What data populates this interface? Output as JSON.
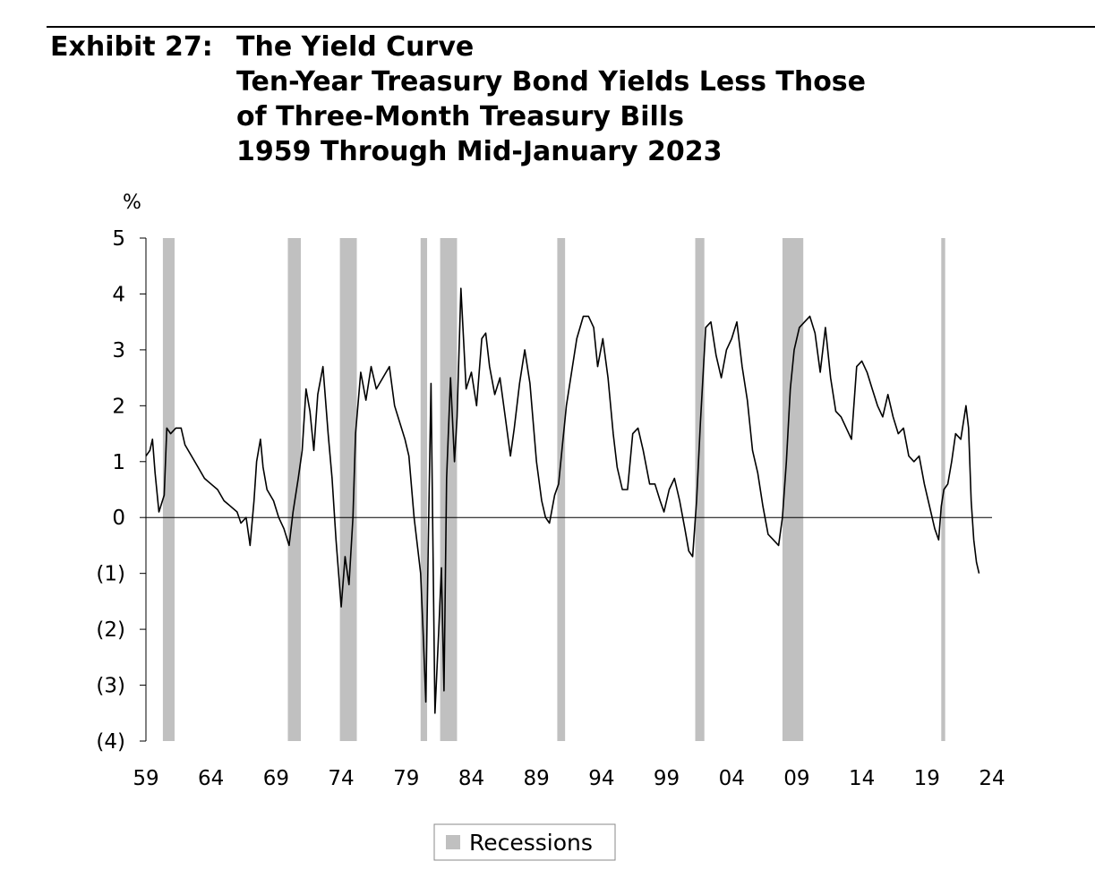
{
  "exhibit_label": "Exhibit 27:",
  "title_lines": [
    "The Yield Curve",
    "Ten-Year Treasury Bond Yields Less Those",
    "of Three-Month Treasury Bills",
    "1959 Through Mid-January 2023"
  ],
  "colors": {
    "line": "#000000",
    "recession": "#c0c0c0",
    "axis": "#000000"
  },
  "chart_data": {
    "type": "line",
    "title": "The Yield Curve",
    "ylabel": "%",
    "xlabel": "",
    "ylim": [
      -4,
      5
    ],
    "xlim": [
      1959,
      2024
    ],
    "y_ticks": [
      {
        "value": 5,
        "label": "5"
      },
      {
        "value": 4,
        "label": "4"
      },
      {
        "value": 3,
        "label": "3"
      },
      {
        "value": 2,
        "label": "2"
      },
      {
        "value": 1,
        "label": "1"
      },
      {
        "value": 0,
        "label": "0"
      },
      {
        "value": -1,
        "label": "(1)"
      },
      {
        "value": -2,
        "label": "(2)"
      },
      {
        "value": -3,
        "label": "(3)"
      },
      {
        "value": -4,
        "label": "(4)"
      }
    ],
    "x_ticks": [
      {
        "value": 1959,
        "label": "59"
      },
      {
        "value": 1964,
        "label": "64"
      },
      {
        "value": 1969,
        "label": "69"
      },
      {
        "value": 1974,
        "label": "74"
      },
      {
        "value": 1979,
        "label": "79"
      },
      {
        "value": 1984,
        "label": "84"
      },
      {
        "value": 1989,
        "label": "89"
      },
      {
        "value": 1994,
        "label": "94"
      },
      {
        "value": 1999,
        "label": "99"
      },
      {
        "value": 2004,
        "label": "04"
      },
      {
        "value": 2009,
        "label": "09"
      },
      {
        "value": 2014,
        "label": "14"
      },
      {
        "value": 2019,
        "label": "19"
      },
      {
        "value": 2024,
        "label": "24"
      }
    ],
    "grid": false,
    "legend_placement": "bottom-center",
    "legend": [
      {
        "label": "Recessions"
      }
    ],
    "recessions": [
      [
        1960.3,
        1961.2
      ],
      [
        1969.9,
        1970.9
      ],
      [
        1973.9,
        1975.2
      ],
      [
        1980.1,
        1980.6
      ],
      [
        1981.6,
        1982.9
      ],
      [
        1990.6,
        1991.2
      ],
      [
        2001.2,
        2001.9
      ],
      [
        2007.9,
        2009.5
      ],
      [
        2020.1,
        2020.4
      ]
    ],
    "series": [
      {
        "x": [
          1959.0,
          1959.3,
          1959.5,
          1959.7,
          1960.0,
          1960.4,
          1960.6,
          1960.9,
          1961.3,
          1961.7,
          1962.0,
          1962.5,
          1963.0,
          1963.5,
          1964.0,
          1964.5,
          1965.0,
          1965.5,
          1966.0,
          1966.3,
          1966.7,
          1967.0,
          1967.3,
          1967.5,
          1967.8,
          1968.0,
          1968.3,
          1968.8,
          1969.2,
          1969.6,
          1970.0,
          1970.3,
          1970.7,
          1971.0,
          1971.3,
          1971.6,
          1971.9,
          1972.2,
          1972.6,
          1973.0,
          1973.3,
          1973.6,
          1973.8,
          1974.0,
          1974.3,
          1974.6,
          1974.9,
          1975.1,
          1975.5,
          1975.9,
          1976.3,
          1976.7,
          1977.2,
          1977.7,
          1978.1,
          1978.5,
          1978.9,
          1979.2,
          1979.6,
          1979.9,
          1980.1,
          1980.3,
          1980.5,
          1980.7,
          1980.9,
          1981.2,
          1981.5,
          1981.7,
          1981.9,
          1982.1,
          1982.4,
          1982.7,
          1982.9,
          1983.2,
          1983.6,
          1984.0,
          1984.4,
          1984.8,
          1985.1,
          1985.4,
          1985.8,
          1986.2,
          1986.6,
          1987.0,
          1987.3,
          1987.7,
          1988.1,
          1988.5,
          1989.0,
          1989.4,
          1989.7,
          1990.0,
          1990.4,
          1990.7,
          1991.0,
          1991.3,
          1991.7,
          1992.1,
          1992.6,
          1993.0,
          1993.4,
          1993.7,
          1994.1,
          1994.5,
          1994.9,
          1995.2,
          1995.6,
          1996.0,
          1996.4,
          1996.8,
          1997.2,
          1997.7,
          1998.1,
          1998.5,
          1998.8,
          1999.2,
          1999.6,
          2000.0,
          2000.4,
          2000.7,
          2001.0,
          2001.3,
          2001.6,
          2002.0,
          2002.4,
          2002.8,
          2003.2,
          2003.6,
          2004.0,
          2004.4,
          2004.8,
          2005.2,
          2005.6,
          2006.0,
          2006.4,
          2006.8,
          2007.2,
          2007.6,
          2007.9,
          2008.2,
          2008.5,
          2008.8,
          2009.2,
          2009.6,
          2010.0,
          2010.4,
          2010.8,
          2011.2,
          2011.6,
          2012.0,
          2012.4,
          2012.8,
          2013.2,
          2013.6,
          2014.0,
          2014.4,
          2014.8,
          2015.2,
          2015.6,
          2016.0,
          2016.4,
          2016.8,
          2017.2,
          2017.6,
          2018.0,
          2018.4,
          2018.8,
          2019.2,
          2019.6,
          2019.9,
          2020.1,
          2020.3,
          2020.6,
          2020.9,
          2021.2,
          2021.6,
          2022.0,
          2022.2,
          2022.4,
          2022.6,
          2022.8,
          2023.0
        ],
        "y": [
          1.1,
          1.2,
          1.4,
          0.8,
          0.1,
          0.4,
          1.6,
          1.5,
          1.6,
          1.6,
          1.3,
          1.1,
          0.9,
          0.7,
          0.6,
          0.5,
          0.3,
          0.2,
          0.1,
          -0.1,
          0.0,
          -0.5,
          0.3,
          1.0,
          1.4,
          0.9,
          0.5,
          0.3,
          0.0,
          -0.2,
          -0.5,
          0.1,
          0.7,
          1.2,
          2.3,
          1.9,
          1.2,
          2.2,
          2.7,
          1.5,
          0.7,
          -0.4,
          -1.0,
          -1.6,
          -0.7,
          -1.2,
          0.0,
          1.5,
          2.6,
          2.1,
          2.7,
          2.3,
          2.5,
          2.7,
          2.0,
          1.7,
          1.4,
          1.1,
          0.0,
          -0.6,
          -1.0,
          -2.1,
          -3.3,
          -0.3,
          2.4,
          -3.5,
          -2.0,
          -0.9,
          -3.1,
          0.7,
          2.5,
          1.0,
          1.8,
          4.1,
          2.3,
          2.6,
          2.0,
          3.2,
          3.3,
          2.7,
          2.2,
          2.5,
          1.8,
          1.1,
          1.6,
          2.4,
          3.0,
          2.4,
          1.0,
          0.3,
          0.0,
          -0.1,
          0.4,
          0.6,
          1.3,
          2.0,
          2.6,
          3.2,
          3.6,
          3.6,
          3.4,
          2.7,
          3.2,
          2.5,
          1.5,
          0.9,
          0.5,
          0.5,
          1.5,
          1.6,
          1.2,
          0.6,
          0.6,
          0.3,
          0.1,
          0.5,
          0.7,
          0.3,
          -0.2,
          -0.6,
          -0.7,
          0.3,
          1.7,
          3.4,
          3.5,
          2.9,
          2.5,
          3.0,
          3.2,
          3.5,
          2.7,
          2.1,
          1.2,
          0.8,
          0.2,
          -0.3,
          -0.4,
          -0.5,
          0.0,
          1.0,
          2.3,
          3.0,
          3.4,
          3.5,
          3.6,
          3.3,
          2.6,
          3.4,
          2.5,
          1.9,
          1.8,
          1.6,
          1.4,
          2.7,
          2.8,
          2.6,
          2.3,
          2.0,
          1.8,
          2.2,
          1.8,
          1.5,
          1.6,
          1.1,
          1.0,
          1.1,
          0.6,
          0.2,
          -0.2,
          -0.4,
          0.2,
          0.5,
          0.6,
          1.0,
          1.5,
          1.4,
          2.0,
          1.6,
          0.3,
          -0.4,
          -0.8,
          -1.0
        ]
      }
    ]
  }
}
